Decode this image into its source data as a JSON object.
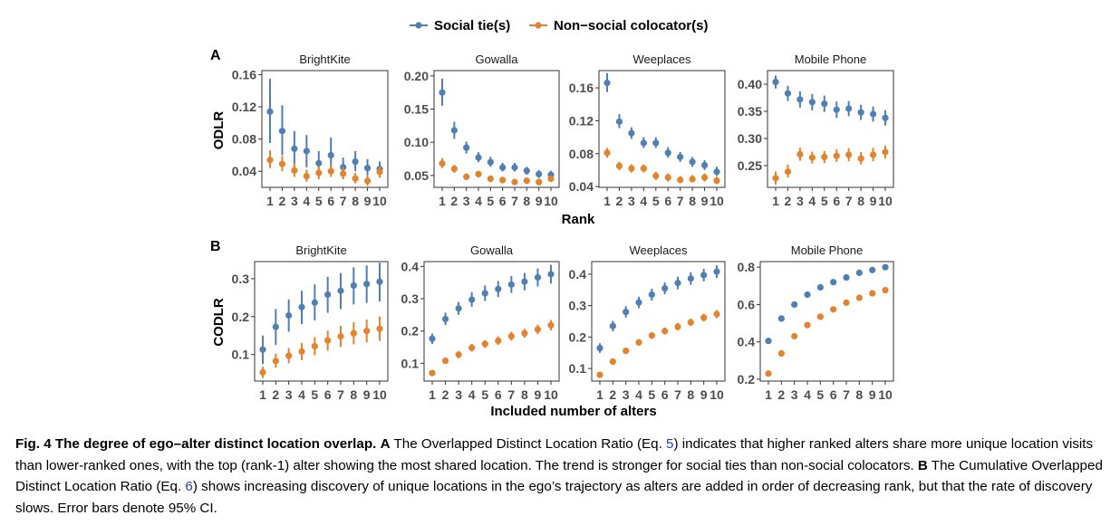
{
  "legend": {
    "items": [
      {
        "label": "Social tie(s)",
        "color": "#4f7fb4"
      },
      {
        "label": "Non−social colocator(s)",
        "color": "#e3832e"
      }
    ]
  },
  "panels": {
    "a": {
      "label": "A",
      "xlabel": "Rank",
      "ylabel": "ODLR"
    },
    "b": {
      "label": "B",
      "xlabel": "Included number of alters",
      "ylabel": "CODLR"
    }
  },
  "caption": {
    "fig_label": "Fig. 4 The degree of ego–alter distinct location overlap.",
    "a_label": "A",
    "text_1": "The Overlapped Distinct Location Ratio (Eq.",
    "eq_a": "5",
    "text_2": ") indicates that higher ranked alters share more unique location visits than lower-ranked ones, with the top (rank-1) alter showing the most shared location. The trend is stronger for social ties than non-social colocators.",
    "b_label": "B",
    "text_3": "The Cumulative Overlapped Distinct Location Ratio (Eq.",
    "eq_b": "6",
    "text_4": ") shows increasing discovery of unique locations in the ego’s trajectory as alters are added in order of decreasing rank, but that the rate of discovery slows. Error bars denote 95% CI."
  },
  "chart_data": [
    {
      "panel": "A",
      "title": "BrightKite",
      "type": "scatter",
      "x": [
        1,
        2,
        3,
        4,
        5,
        6,
        7,
        8,
        9,
        10
      ],
      "xticks": [
        "1",
        "2",
        "3",
        "4",
        "5",
        "6",
        "7",
        "8",
        "9",
        "10"
      ],
      "ylim": [
        0.02,
        0.165
      ],
      "yticks": [
        0.04,
        0.08,
        0.12,
        0.16
      ],
      "series": [
        {
          "name": "Social tie(s)",
          "values": [
            0.114,
            0.09,
            0.068,
            0.065,
            0.05,
            0.06,
            0.045,
            0.052,
            0.044,
            0.043
          ],
          "ci_low": [
            0.075,
            0.06,
            0.045,
            0.045,
            0.035,
            0.04,
            0.035,
            0.04,
            0.035,
            0.034
          ],
          "ci_high": [
            0.155,
            0.122,
            0.09,
            0.085,
            0.065,
            0.082,
            0.057,
            0.065,
            0.055,
            0.052
          ]
        },
        {
          "name": "Non−social colocator(s)",
          "values": [
            0.054,
            0.049,
            0.041,
            0.034,
            0.038,
            0.04,
            0.037,
            0.031,
            0.028,
            0.039
          ],
          "ci_low": [
            0.044,
            0.04,
            0.033,
            0.027,
            0.03,
            0.033,
            0.03,
            0.025,
            0.022,
            0.032
          ],
          "ci_high": [
            0.066,
            0.059,
            0.05,
            0.042,
            0.046,
            0.048,
            0.045,
            0.038,
            0.035,
            0.046
          ]
        }
      ]
    },
    {
      "panel": "A",
      "title": "Gowalla",
      "type": "scatter",
      "x": [
        1,
        2,
        3,
        4,
        5,
        6,
        7,
        8,
        9,
        10
      ],
      "xticks": [
        "1",
        "2",
        "3",
        "4",
        "5",
        "6",
        "7",
        "8",
        "9",
        "10"
      ],
      "ylim": [
        0.032,
        0.208
      ],
      "yticks": [
        0.05,
        0.1,
        0.15,
        0.2
      ],
      "series": [
        {
          "name": "Social tie(s)",
          "values": [
            0.175,
            0.118,
            0.092,
            0.077,
            0.07,
            0.062,
            0.062,
            0.057,
            0.052,
            0.051
          ],
          "ci_low": [
            0.155,
            0.105,
            0.083,
            0.07,
            0.063,
            0.056,
            0.056,
            0.051,
            0.046,
            0.045
          ],
          "ci_high": [
            0.196,
            0.131,
            0.101,
            0.085,
            0.078,
            0.069,
            0.069,
            0.063,
            0.058,
            0.057
          ]
        },
        {
          "name": "Non−social colocator(s)",
          "values": [
            0.068,
            0.06,
            0.048,
            0.052,
            0.045,
            0.043,
            0.04,
            0.042,
            0.04,
            0.045
          ],
          "ci_low": [
            0.061,
            0.054,
            0.043,
            0.047,
            0.04,
            0.038,
            0.036,
            0.037,
            0.035,
            0.04
          ],
          "ci_high": [
            0.076,
            0.066,
            0.053,
            0.057,
            0.05,
            0.048,
            0.045,
            0.047,
            0.045,
            0.05
          ]
        }
      ]
    },
    {
      "panel": "A",
      "title": "Weeplaces",
      "type": "scatter",
      "x": [
        1,
        2,
        3,
        4,
        5,
        6,
        7,
        8,
        9,
        10
      ],
      "xticks": [
        "1",
        "2",
        "3",
        "4",
        "5",
        "6",
        "7",
        "8",
        "9",
        "10"
      ],
      "ylim": [
        0.039,
        0.181
      ],
      "yticks": [
        0.04,
        0.08,
        0.12,
        0.16
      ],
      "series": [
        {
          "name": "Social tie(s)",
          "values": [
            0.166,
            0.119,
            0.105,
            0.093,
            0.093,
            0.081,
            0.076,
            0.07,
            0.066,
            0.058
          ],
          "ci_low": [
            0.155,
            0.111,
            0.098,
            0.087,
            0.087,
            0.075,
            0.07,
            0.064,
            0.06,
            0.053
          ],
          "ci_high": [
            0.178,
            0.128,
            0.112,
            0.1,
            0.1,
            0.088,
            0.082,
            0.076,
            0.072,
            0.064
          ]
        },
        {
          "name": "Non−social colocator(s)",
          "values": [
            0.081,
            0.065,
            0.062,
            0.062,
            0.053,
            0.051,
            0.048,
            0.049,
            0.051,
            0.047
          ],
          "ci_low": [
            0.075,
            0.06,
            0.057,
            0.057,
            0.048,
            0.046,
            0.044,
            0.045,
            0.046,
            0.043
          ],
          "ci_high": [
            0.087,
            0.07,
            0.067,
            0.067,
            0.058,
            0.056,
            0.053,
            0.054,
            0.056,
            0.052
          ]
        }
      ]
    },
    {
      "panel": "A",
      "title": "Mobile Phone",
      "type": "scatter",
      "x": [
        1,
        2,
        3,
        4,
        5,
        6,
        7,
        8,
        9,
        10
      ],
      "xticks": [
        "1",
        "2",
        "3",
        "4",
        "5",
        "6",
        "7",
        "8",
        "9",
        "10"
      ],
      "ylim": [
        0.21,
        0.425
      ],
      "yticks": [
        0.25,
        0.3,
        0.35,
        0.4
      ],
      "series": [
        {
          "name": "Social tie(s)",
          "values": [
            0.404,
            0.383,
            0.372,
            0.367,
            0.364,
            0.353,
            0.355,
            0.348,
            0.345,
            0.338
          ],
          "ci_low": [
            0.392,
            0.369,
            0.357,
            0.352,
            0.349,
            0.338,
            0.341,
            0.334,
            0.331,
            0.324
          ],
          "ci_high": [
            0.416,
            0.397,
            0.387,
            0.382,
            0.379,
            0.368,
            0.369,
            0.362,
            0.359,
            0.352
          ]
        },
        {
          "name": "Non−social colocator(s)",
          "values": [
            0.227,
            0.239,
            0.271,
            0.265,
            0.266,
            0.268,
            0.27,
            0.263,
            0.27,
            0.275
          ],
          "ci_low": [
            0.215,
            0.228,
            0.259,
            0.254,
            0.255,
            0.257,
            0.258,
            0.252,
            0.258,
            0.263
          ],
          "ci_high": [
            0.239,
            0.252,
            0.283,
            0.276,
            0.277,
            0.28,
            0.282,
            0.275,
            0.283,
            0.287
          ]
        }
      ]
    },
    {
      "panel": "B",
      "title": "BrightKite",
      "type": "scatter",
      "x": [
        1,
        2,
        3,
        4,
        5,
        6,
        7,
        8,
        9,
        10
      ],
      "xticks": [
        "1",
        "2",
        "3",
        "4",
        "5",
        "6",
        "7",
        "8",
        "9",
        "10"
      ],
      "ylim": [
        0.03,
        0.345
      ],
      "yticks": [
        0.1,
        0.2,
        0.3
      ],
      "series": [
        {
          "name": "Social tie(s)",
          "values": [
            0.113,
            0.173,
            0.203,
            0.225,
            0.237,
            0.258,
            0.268,
            0.282,
            0.286,
            0.292
          ],
          "ci_low": [
            0.075,
            0.125,
            0.16,
            0.18,
            0.19,
            0.21,
            0.22,
            0.232,
            0.236,
            0.24
          ],
          "ci_high": [
            0.15,
            0.22,
            0.245,
            0.268,
            0.285,
            0.305,
            0.315,
            0.33,
            0.335,
            0.342
          ]
        },
        {
          "name": "Non−social colocator(s)",
          "values": [
            0.053,
            0.083,
            0.097,
            0.108,
            0.122,
            0.137,
            0.148,
            0.156,
            0.162,
            0.168
          ],
          "ci_low": [
            0.038,
            0.065,
            0.077,
            0.085,
            0.098,
            0.11,
            0.12,
            0.127,
            0.132,
            0.136
          ],
          "ci_high": [
            0.068,
            0.102,
            0.117,
            0.13,
            0.146,
            0.163,
            0.176,
            0.185,
            0.192,
            0.2
          ]
        }
      ]
    },
    {
      "panel": "B",
      "title": "Gowalla",
      "type": "scatter",
      "x": [
        1,
        2,
        3,
        4,
        5,
        6,
        7,
        8,
        9,
        10
      ],
      "xticks": [
        "1",
        "2",
        "3",
        "4",
        "5",
        "6",
        "7",
        "8",
        "9",
        "10"
      ],
      "ylim": [
        0.045,
        0.415
      ],
      "yticks": [
        0.1,
        0.2,
        0.3,
        0.4
      ],
      "series": [
        {
          "name": "Social tie(s)",
          "values": [
            0.176,
            0.237,
            0.27,
            0.297,
            0.317,
            0.33,
            0.344,
            0.353,
            0.366,
            0.376
          ],
          "ci_low": [
            0.16,
            0.218,
            0.25,
            0.275,
            0.293,
            0.305,
            0.318,
            0.326,
            0.338,
            0.347
          ],
          "ci_high": [
            0.192,
            0.257,
            0.29,
            0.32,
            0.341,
            0.355,
            0.37,
            0.38,
            0.394,
            0.405
          ]
        },
        {
          "name": "Non−social colocator(s)",
          "values": [
            0.07,
            0.108,
            0.127,
            0.148,
            0.16,
            0.17,
            0.184,
            0.193,
            0.205,
            0.218
          ],
          "ci_low": [
            0.062,
            0.098,
            0.116,
            0.136,
            0.148,
            0.157,
            0.17,
            0.179,
            0.19,
            0.202
          ],
          "ci_high": [
            0.078,
            0.118,
            0.138,
            0.16,
            0.172,
            0.183,
            0.198,
            0.207,
            0.22,
            0.234
          ]
        }
      ]
    },
    {
      "panel": "B",
      "title": "Weeplaces",
      "type": "scatter",
      "x": [
        1,
        2,
        3,
        4,
        5,
        6,
        7,
        8,
        9,
        10
      ],
      "xticks": [
        "1",
        "2",
        "3",
        "4",
        "5",
        "6",
        "7",
        "8",
        "9",
        "10"
      ],
      "ylim": [
        0.06,
        0.44
      ],
      "yticks": [
        0.1,
        0.2,
        0.3,
        0.4
      ],
      "series": [
        {
          "name": "Social tie(s)",
          "values": [
            0.165,
            0.235,
            0.28,
            0.31,
            0.335,
            0.355,
            0.372,
            0.386,
            0.397,
            0.408
          ],
          "ci_low": [
            0.15,
            0.218,
            0.262,
            0.292,
            0.316,
            0.336,
            0.352,
            0.366,
            0.377,
            0.388
          ],
          "ci_high": [
            0.18,
            0.252,
            0.298,
            0.328,
            0.354,
            0.374,
            0.392,
            0.406,
            0.417,
            0.428
          ]
        },
        {
          "name": "Non−social colocator(s)",
          "values": [
            0.08,
            0.122,
            0.156,
            0.183,
            0.205,
            0.219,
            0.233,
            0.247,
            0.262,
            0.273
          ],
          "ci_low": [
            0.075,
            0.114,
            0.147,
            0.173,
            0.194,
            0.208,
            0.221,
            0.235,
            0.25,
            0.26
          ],
          "ci_high": [
            0.085,
            0.13,
            0.165,
            0.193,
            0.216,
            0.23,
            0.245,
            0.259,
            0.274,
            0.286
          ]
        }
      ]
    },
    {
      "panel": "B",
      "title": "Mobile Phone",
      "type": "scatter",
      "x": [
        1,
        2,
        3,
        4,
        5,
        6,
        7,
        8,
        9,
        10
      ],
      "xticks": [
        "1",
        "2",
        "3",
        "4",
        "5",
        "6",
        "7",
        "8",
        "9",
        "10"
      ],
      "ylim": [
        0.19,
        0.83
      ],
      "yticks": [
        0.2,
        0.4,
        0.6,
        0.8
      ],
      "series": [
        {
          "name": "Social tie(s)",
          "values": [
            0.405,
            0.525,
            0.6,
            0.653,
            0.692,
            0.72,
            0.745,
            0.77,
            0.785,
            0.8
          ],
          "ci_low": [
            0.395,
            0.515,
            0.59,
            0.643,
            0.682,
            0.71,
            0.735,
            0.76,
            0.775,
            0.79
          ],
          "ci_high": [
            0.415,
            0.535,
            0.61,
            0.663,
            0.702,
            0.73,
            0.755,
            0.78,
            0.795,
            0.81
          ]
        },
        {
          "name": "Non−social colocator(s)",
          "values": [
            0.23,
            0.338,
            0.43,
            0.49,
            0.535,
            0.574,
            0.61,
            0.636,
            0.66,
            0.677
          ],
          "ci_low": [
            0.22,
            0.328,
            0.42,
            0.48,
            0.525,
            0.564,
            0.6,
            0.626,
            0.65,
            0.667
          ],
          "ci_high": [
            0.24,
            0.348,
            0.44,
            0.5,
            0.545,
            0.584,
            0.62,
            0.646,
            0.67,
            0.687
          ]
        }
      ]
    }
  ]
}
